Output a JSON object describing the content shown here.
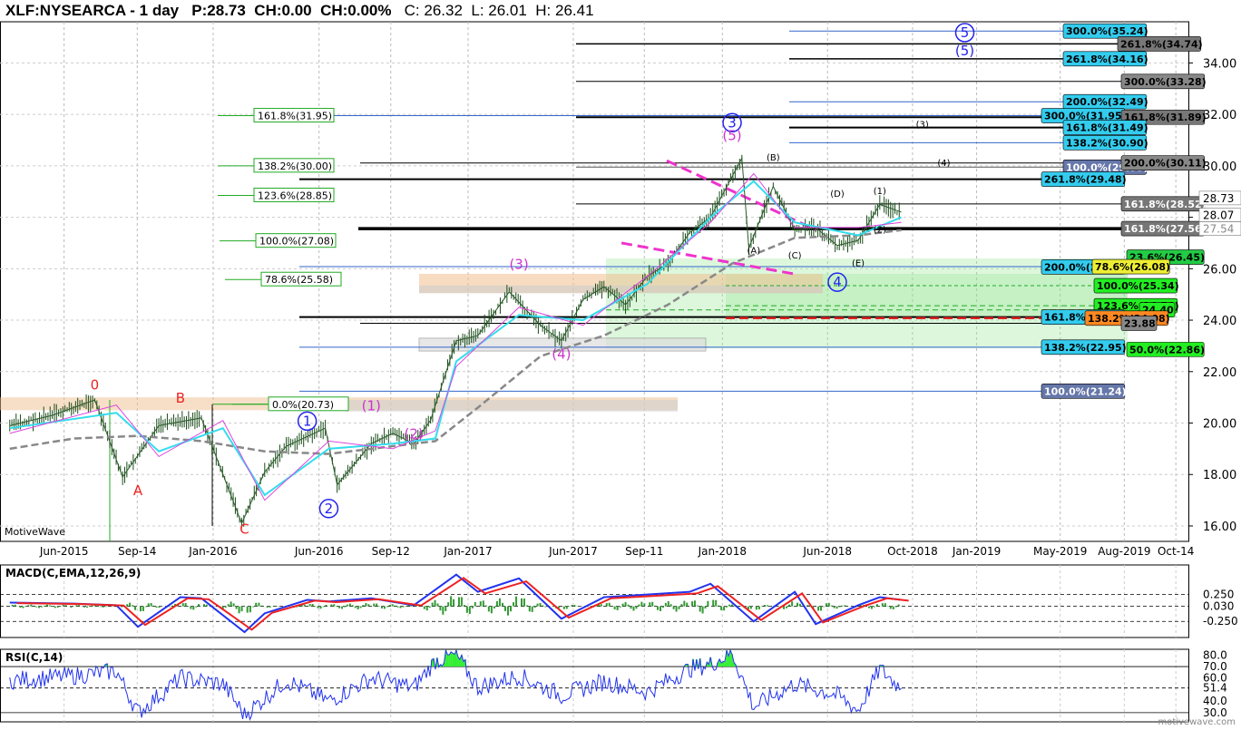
{
  "header": {
    "symbol": "XLF:NYSEARCA - 1 day",
    "p": "P:28.73",
    "ch": "CH:0.00",
    "chp": "CH:0.00%",
    "c": "C: 26.32",
    "l": "L: 26.01",
    "h": "H: 26.41"
  },
  "brand": "MotiveWave",
  "watermark": "motivewave.com",
  "chart_data": {
    "type": "line",
    "title": "XLF:NYSEARCA - 1 day",
    "price_axis": {
      "ticks": [
        "34.00",
        "32.00",
        "30.00",
        "28.00",
        "26.00",
        "24.00",
        "22.00",
        "20.00",
        "18.00",
        "16.00"
      ],
      "ylim": [
        15.4,
        35.6
      ]
    },
    "time_axis": {
      "ticks": [
        "Jun-2015",
        "Sep-14",
        "Jan-2016",
        "Jun-2016",
        "Sep-12",
        "Jan-2017",
        "Jun-2017",
        "Sep-11",
        "Jan-2018",
        "Jun-2018",
        "Oct-2018",
        "Jan-2019",
        "May-2019",
        "Aug-2019",
        "Oct-14"
      ]
    },
    "last_price_labels": [
      "28.73",
      "28.07",
      "27.54"
    ],
    "price_series": {
      "name": "XLF",
      "x": [
        "2015-03",
        "2015-05",
        "2015-07",
        "2015-08-24",
        "2015-10",
        "2015-12",
        "2016-02-11",
        "2016-03",
        "2016-04",
        "2016-06-10",
        "2016-06-27",
        "2016-08",
        "2016-09",
        "2016-10",
        "2016-11-08",
        "2016-12",
        "2017-01",
        "2017-03-01",
        "2017-04",
        "2017-05",
        "2017-06",
        "2017-07",
        "2017-08",
        "2017-09",
        "2017-10",
        "2017-11",
        "2017-12",
        "2018-01-29",
        "2018-02-08",
        "2018-03",
        "2018-04",
        "2018-05",
        "2018-06",
        "2018-07",
        "2018-08",
        "2018-09"
      ],
      "y": [
        19.9,
        20.3,
        20.9,
        17.9,
        19.9,
        20.2,
        16.1,
        18.1,
        19.1,
        19.8,
        17.6,
        19.2,
        19.6,
        19.2,
        20.1,
        23.2,
        23.4,
        25.1,
        23.8,
        23.2,
        24.8,
        25.3,
        24.6,
        25.7,
        26.2,
        27.4,
        28.0,
        30.3,
        26.8,
        29.2,
        27.5,
        27.6,
        26.9,
        27.1,
        28.5,
        28.2
      ]
    },
    "ema_fast": {
      "x": [
        "2015-03",
        "2015-08",
        "2015-10",
        "2016-01",
        "2016-03",
        "2016-06",
        "2016-09",
        "2016-11",
        "2016-12",
        "2017-03",
        "2017-06",
        "2017-09",
        "2017-12",
        "2018-02",
        "2018-04",
        "2018-07",
        "2018-09"
      ],
      "y": [
        19.8,
        20.4,
        18.9,
        19.8,
        17.2,
        19.0,
        19.2,
        19.4,
        22.4,
        24.2,
        24.0,
        25.4,
        28.0,
        29.4,
        27.8,
        27.3,
        28.0
      ]
    },
    "sma_slow": {
      "x": [
        "2015-03",
        "2015-06",
        "2015-09",
        "2015-12",
        "2016-03",
        "2016-06",
        "2016-09",
        "2016-11",
        "2017-01",
        "2017-04",
        "2017-07",
        "2017-10",
        "2018-01",
        "2018-04",
        "2018-07",
        "2018-09"
      ],
      "y": [
        19.0,
        19.4,
        19.5,
        19.3,
        18.9,
        18.8,
        19.1,
        19.3,
        20.6,
        22.6,
        23.4,
        24.6,
        26.2,
        27.2,
        27.3,
        27.5
      ]
    },
    "waves_count": [
      {
        "label": "0",
        "color": "#ee2222",
        "x": "2015-07",
        "y": 21.3
      },
      {
        "label": "A",
        "color": "#ee2222",
        "x": "2015-09",
        "y": 17.2
      },
      {
        "label": "B",
        "color": "#ee2222",
        "x": "2015-11",
        "y": 20.8
      },
      {
        "label": "C",
        "color": "#ee2222",
        "x": "2016-02",
        "y": 15.7
      },
      {
        "label": "1",
        "color": "#2222ee",
        "x": "2016-05",
        "y": 19.9
      },
      {
        "label": "2",
        "color": "#2222ee",
        "x": "2016-06",
        "y": 16.5
      },
      {
        "label": "(1)",
        "color": "#cc33cc",
        "x": "2016-08",
        "y": 20.5
      },
      {
        "label": "(2)",
        "color": "#cc33cc",
        "x": "2016-10",
        "y": 19.4
      },
      {
        "label": "(3)",
        "color": "#cc33cc",
        "x": "2017-03",
        "y": 26.0
      },
      {
        "label": "(4)",
        "color": "#cc33cc",
        "x": "2017-05",
        "y": 22.5
      },
      {
        "label": "3",
        "color": "#2222ee",
        "x": "2018-01",
        "y": 31.5
      },
      {
        "label": "(5)",
        "color": "#cc33cc",
        "x": "2018-01",
        "y": 31.0
      },
      {
        "label": "4",
        "color": "#2222ee",
        "x": "2018-06",
        "y": 25.3
      },
      {
        "label": "5",
        "color": "#2222ee",
        "x": "2018-12",
        "y": 35.0
      },
      {
        "label": "(5)",
        "color": "#2222ee",
        "x": "2018-12",
        "y": 34.3
      }
    ],
    "waves_small": [
      {
        "label": "(A)",
        "x": "2018-02",
        "y": 26.6
      },
      {
        "label": "(B)",
        "x": "2018-03",
        "y": 30.2
      },
      {
        "label": "(C)",
        "x": "2018-04",
        "y": 26.4
      },
      {
        "label": "(D)",
        "x": "2018-06",
        "y": 28.8
      },
      {
        "label": "(E)",
        "x": "2018-07",
        "y": 26.1
      },
      {
        "label": "(1)",
        "x": "2018-08",
        "y": 28.9
      },
      {
        "label": "(2)",
        "x": "2018-08",
        "y": 27.4
      },
      {
        "label": "(3)",
        "x": "2018-10",
        "y": 31.5
      },
      {
        "label": "(4)",
        "x": "2018-11",
        "y": 30.0
      }
    ],
    "fib_labels_left": [
      "161.8%(31.95)",
      "138.2%(30.00)",
      "123.6%(28.85)",
      "100.0%(27.08)",
      "78.6%(25.58)",
      "0.0%(20.73)"
    ],
    "fib_labels_right": [
      {
        "text": "300.0%(35.24)",
        "bg": "#33ccee",
        "fg": "#000"
      },
      {
        "text": "261.8%(34.74)",
        "bg": "#777777",
        "fg": "#000"
      },
      {
        "text": "261.8%(34.16)",
        "bg": "#33ccee",
        "fg": "#000"
      },
      {
        "text": "300.0%(33.28)",
        "bg": "#888888",
        "fg": "#000"
      },
      {
        "text": "200.0%(32.49)",
        "bg": "#33ccee",
        "fg": "#000"
      },
      {
        "text": "300.0%(31.95)",
        "bg": "#33ccee",
        "fg": "#000"
      },
      {
        "text": "161.8%(31.89)",
        "bg": "#777777",
        "fg": "#000"
      },
      {
        "text": "161.8%(31.49)",
        "bg": "#33ccee",
        "fg": "#000"
      },
      {
        "text": "138.2%(30.90)",
        "bg": "#33ccee",
        "fg": "#000"
      },
      {
        "text": "100.0%(29.95)",
        "bg": "#6677aa",
        "fg": "#fff"
      },
      {
        "text": "200.0%(30.11)",
        "bg": "#888888",
        "fg": "#000"
      },
      {
        "text": "261.8%(29.48)",
        "bg": "#33ccee",
        "fg": "#000"
      },
      {
        "text": "161.8%(28.52)",
        "bg": "#777777",
        "fg": "#fff"
      },
      {
        "text": "161.8%(27.56)",
        "bg": "#777777",
        "fg": "#fff"
      },
      {
        "text": "23.6%(26.45)",
        "bg": "#22cc44",
        "fg": "#000"
      },
      {
        "text": "200.0%(26.07)",
        "bg": "#33ccee",
        "fg": "#000"
      },
      {
        "text": "78.6%(26.08)",
        "bg": "#eeee33",
        "fg": "#000"
      },
      {
        "text": "100.0%(25.34)",
        "bg": "#22ee22",
        "fg": "#000"
      },
      {
        "text": "123.6%(24.56)",
        "bg": "#22ee22",
        "fg": "#000"
      },
      {
        "text": "24.40",
        "bg": "#22ee22",
        "fg": "#000"
      },
      {
        "text": "161.8%(24.12)",
        "bg": "#33ccee",
        "fg": "#000"
      },
      {
        "text": "138.2%(24.08)",
        "bg": "#ff8822",
        "fg": "#000"
      },
      {
        "text": "23.88",
        "bg": "#888888",
        "fg": "#000"
      },
      {
        "text": "138.2%(22.95)",
        "bg": "#33ccee",
        "fg": "#000"
      },
      {
        "text": "50.0%(22.86)",
        "bg": "#22ee22",
        "fg": "#000"
      },
      {
        "text": "100.0%(21.24)",
        "bg": "#6677aa",
        "fg": "#fff"
      }
    ],
    "macd": {
      "title": "MACD(C,EMA,12,26,9)",
      "ticks": [
        "0.250",
        "0.030",
        "-0.250"
      ],
      "x": [
        "2015-03",
        "2015-06",
        "2015-08",
        "2015-09",
        "2015-11",
        "2015-12",
        "2016-02",
        "2016-03",
        "2016-05",
        "2016-06",
        "2016-08",
        "2016-10",
        "2016-12",
        "2017-01",
        "2017-03",
        "2017-05",
        "2017-07",
        "2017-09",
        "2017-11",
        "2017-12",
        "2018-02",
        "2018-04",
        "2018-05",
        "2018-07",
        "2018-08",
        "2018-09"
      ],
      "y": [
        0.1,
        0.08,
        0.05,
        -0.35,
        0.2,
        0.18,
        -0.45,
        -0.1,
        0.15,
        0.12,
        0.18,
        0.05,
        0.62,
        0.3,
        0.55,
        -0.2,
        0.2,
        0.25,
        0.3,
        0.45,
        -0.25,
        0.3,
        -0.3,
        0.05,
        0.2,
        0.15
      ]
    },
    "rsi": {
      "title": "RSI(C,14)",
      "ticks": [
        "80.0",
        "70.0",
        "60.0",
        "51.4",
        "40.0",
        "30.0"
      ],
      "x": [
        "2015-03",
        "2015-06",
        "2015-08",
        "2015-09",
        "2015-11",
        "2016-01",
        "2016-02",
        "2016-04",
        "2016-06",
        "2016-08",
        "2016-10",
        "2016-11",
        "2016-12",
        "2017-01",
        "2017-03",
        "2017-05",
        "2017-07",
        "2017-09",
        "2017-11",
        "2017-12",
        "2018-01",
        "2018-02",
        "2018-04",
        "2018-06",
        "2018-07",
        "2018-08",
        "2018-09"
      ],
      "y": [
        58,
        62,
        66,
        30,
        60,
        55,
        28,
        58,
        40,
        60,
        52,
        75,
        80,
        52,
        62,
        45,
        57,
        48,
        68,
        72,
        82,
        35,
        55,
        45,
        32,
        68,
        51
      ]
    }
  }
}
